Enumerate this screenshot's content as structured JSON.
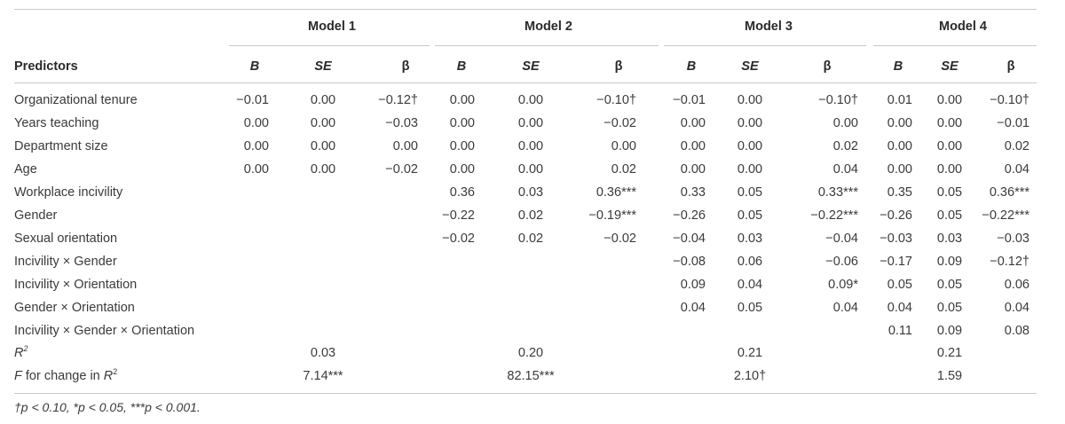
{
  "table": {
    "models": [
      "Model 1",
      "Model 2",
      "Model 3",
      "Model 4"
    ],
    "predictors_header": "Predictors",
    "col_headers": [
      "B",
      "SE",
      "β"
    ],
    "rows": [
      {
        "label": "Organizational tenure",
        "values": [
          "−0.01",
          "0.00",
          "−0.12†",
          "0.00",
          "0.00",
          "−0.10†",
          "−0.01",
          "0.00",
          "−0.10†",
          "0.01",
          "0.00",
          "−0.10†"
        ]
      },
      {
        "label": "Years teaching",
        "values": [
          "0.00",
          "0.00",
          "−0.03",
          "0.00",
          "0.00",
          "−0.02",
          "0.00",
          "0.00",
          "0.00",
          "0.00",
          "0.00",
          "−0.01"
        ]
      },
      {
        "label": "Department size",
        "values": [
          "0.00",
          "0.00",
          "0.00",
          "0.00",
          "0.00",
          "0.00",
          "0.00",
          "0.00",
          "0.02",
          "0.00",
          "0.00",
          "0.02"
        ]
      },
      {
        "label": "Age",
        "values": [
          "0.00",
          "0.00",
          "−0.02",
          "0.00",
          "0.00",
          "0.02",
          "0.00",
          "0.00",
          "0.04",
          "0.00",
          "0.00",
          "0.04"
        ]
      },
      {
        "label": "Workplace incivility",
        "values": [
          "",
          "",
          "",
          "0.36",
          "0.03",
          "0.36***",
          "0.33",
          "0.05",
          "0.33***",
          "0.35",
          "0.05",
          "0.36***"
        ]
      },
      {
        "label": "Gender",
        "values": [
          "",
          "",
          "",
          "−0.22",
          "0.02",
          "−0.19***",
          "−0.26",
          "0.05",
          "−0.22***",
          "−0.26",
          "0.05",
          "−0.22***"
        ]
      },
      {
        "label": "Sexual orientation",
        "values": [
          "",
          "",
          "",
          "−0.02",
          "0.02",
          "−0.02",
          "−0.04",
          "0.03",
          "−0.04",
          "−0.03",
          "0.03",
          "−0.03"
        ]
      },
      {
        "label": "Incivility × Gender",
        "values": [
          "",
          "",
          "",
          "",
          "",
          "",
          "−0.08",
          "0.06",
          "−0.06",
          "−0.17",
          "0.09",
          "−0.12†"
        ]
      },
      {
        "label": "Incivility × Orientation",
        "values": [
          "",
          "",
          "",
          "",
          "",
          "",
          "0.09",
          "0.04",
          "0.09*",
          "0.05",
          "0.05",
          "0.06"
        ]
      },
      {
        "label": "Gender × Orientation",
        "values": [
          "",
          "",
          "",
          "",
          "",
          "",
          "0.04",
          "0.05",
          "0.04",
          "0.04",
          "0.05",
          "0.04"
        ]
      },
      {
        "label": "Incivility × Gender  ×  Orientation",
        "values": [
          "",
          "",
          "",
          "",
          "",
          "",
          "",
          "",
          "",
          "0.11",
          "0.09",
          "0.08"
        ]
      }
    ],
    "r2_row": {
      "label": "R",
      "label_sup": "2",
      "values": [
        "0.03",
        "0.20",
        "0.21",
        "0.21"
      ]
    },
    "f_row": {
      "label_prefix": "F",
      "label_mid": " for change in ",
      "label_r": "R",
      "label_sup": "2",
      "values": [
        "7.14***",
        "82.15***",
        "2.10†",
        "1.59"
      ]
    },
    "footnote": "†p < 0.10, *p < 0.05, ***p < 0.001."
  }
}
